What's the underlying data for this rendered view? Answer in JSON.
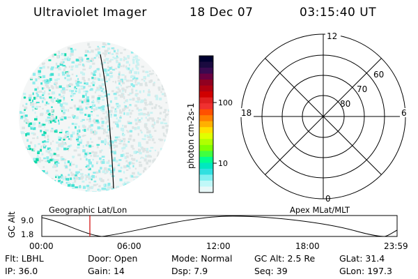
{
  "header": {
    "title": "Ultraviolet Imager",
    "date": "18 Dec 07",
    "time": "03:15:40 UT"
  },
  "colorbar": {
    "label": "photon cm-2s-1",
    "ticks": [
      "100",
      "10"
    ],
    "colors": [
      "#000030",
      "#1a0a40",
      "#3a0a50",
      "#6a0040",
      "#900020",
      "#b00010",
      "#d00000",
      "#e02020",
      "#f03030",
      "#ff5000",
      "#ff8000",
      "#ffb000",
      "#ffe000",
      "#e0ff00",
      "#b0ff00",
      "#80ff00",
      "#40ff40",
      "#00ff90",
      "#00e8c0",
      "#30e0e0",
      "#80f0f0",
      "#c0f8f8",
      "#e8f8f8"
    ]
  },
  "polar": {
    "mlt_labels": {
      "top": "12",
      "left": "18",
      "right": "6",
      "bottom": "0"
    },
    "lat_labels": [
      "60",
      "70",
      "80"
    ]
  },
  "track": {
    "ylabel": "GC Alt",
    "yticks": [
      "9.0",
      "1.8"
    ],
    "left_label": "Geographic Lat/Lon",
    "right_label": "Apex MLat/MLT",
    "xticks": [
      "00:00",
      "06:00",
      "12:00",
      "18:00",
      "23:59"
    ]
  },
  "info": [
    [
      {
        "label": "Flt:",
        "value": "LBHL"
      },
      {
        "label": "Door:",
        "value": "Open"
      },
      {
        "label": "Mode:",
        "value": "Normal"
      },
      {
        "label": "GC Alt:",
        "value": "2.5 Re"
      },
      {
        "label": "GLat:",
        "value": "31.4"
      }
    ],
    [
      {
        "label": "IP:",
        "value": "36.0"
      },
      {
        "label": "Gain:",
        "value": "14"
      },
      {
        "label": "Dsp:",
        "value": "7.9"
      },
      {
        "label": "Seq:",
        "value": "39"
      },
      {
        "label": "GLon:",
        "value": "197.3"
      }
    ]
  ]
}
